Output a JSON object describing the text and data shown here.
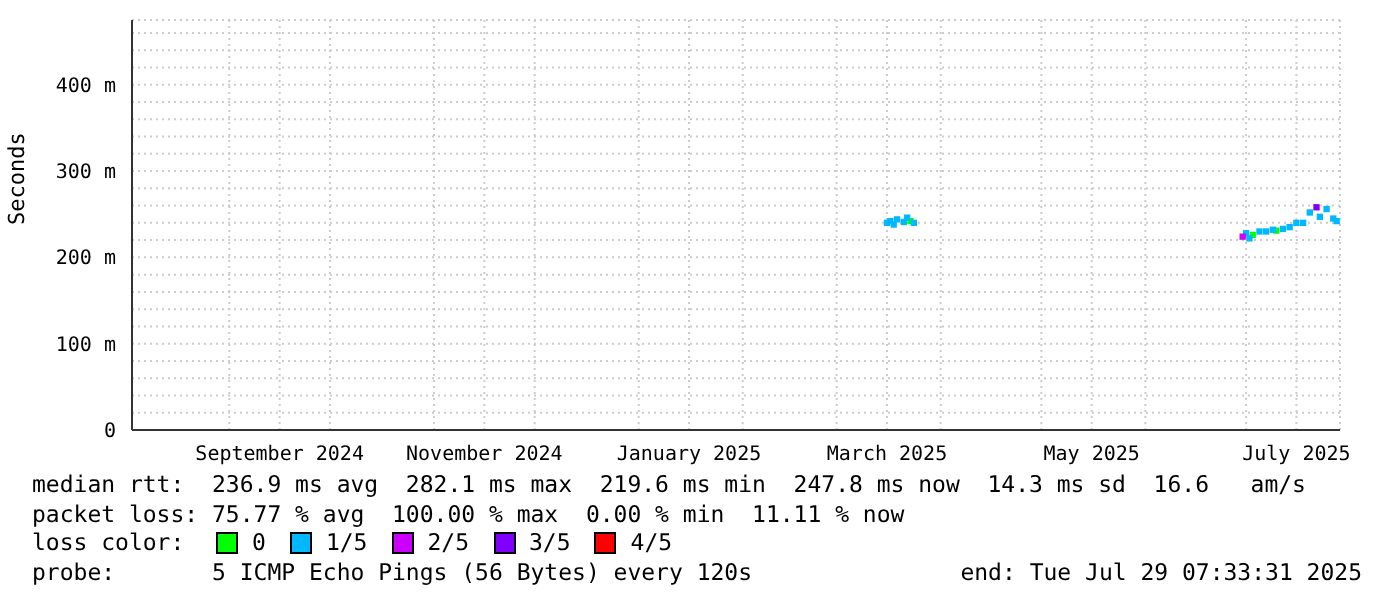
{
  "chart_data": {
    "type": "scatter",
    "ylabel": "Seconds",
    "xlim": [
      "2024-08-03",
      "2025-07-29"
    ],
    "xticks": [
      {
        "value": "2024-09-01",
        "label": null
      },
      {
        "value": "2024-09-16",
        "label": "September 2024"
      },
      {
        "value": "2024-10-01",
        "label": null
      },
      {
        "value": "2024-11-01",
        "label": null
      },
      {
        "value": "2024-11-16",
        "label": "November 2024"
      },
      {
        "value": "2024-12-01",
        "label": null
      },
      {
        "value": "2025-01-01",
        "label": null
      },
      {
        "value": "2025-01-16",
        "label": "January 2025"
      },
      {
        "value": "2025-02-01",
        "label": null
      },
      {
        "value": "2025-03-01",
        "label": null
      },
      {
        "value": "2025-03-16",
        "label": "March 2025"
      },
      {
        "value": "2025-04-01",
        "label": null
      },
      {
        "value": "2025-05-01",
        "label": null
      },
      {
        "value": "2025-05-16",
        "label": "May 2025"
      },
      {
        "value": "2025-06-01",
        "label": null
      },
      {
        "value": "2025-07-01",
        "label": null
      },
      {
        "value": "2025-07-16",
        "label": "July 2025"
      }
    ],
    "ylim": [
      0,
      475
    ],
    "yticks": [
      {
        "value": 0,
        "label": "0"
      },
      {
        "value": 20,
        "label": null
      },
      {
        "value": 40,
        "label": null
      },
      {
        "value": 60,
        "label": null
      },
      {
        "value": 80,
        "label": null
      },
      {
        "value": 100,
        "label": "100 m"
      },
      {
        "value": 120,
        "label": null
      },
      {
        "value": 140,
        "label": null
      },
      {
        "value": 160,
        "label": null
      },
      {
        "value": 180,
        "label": null
      },
      {
        "value": 200,
        "label": "200 m"
      },
      {
        "value": 220,
        "label": null
      },
      {
        "value": 240,
        "label": null
      },
      {
        "value": 260,
        "label": null
      },
      {
        "value": 280,
        "label": null
      },
      {
        "value": 300,
        "label": "300 m"
      },
      {
        "value": 320,
        "label": null
      },
      {
        "value": 340,
        "label": null
      },
      {
        "value": 360,
        "label": null
      },
      {
        "value": 380,
        "label": null
      },
      {
        "value": 400,
        "label": "400 m"
      },
      {
        "value": 420,
        "label": null
      },
      {
        "value": 440,
        "label": null
      },
      {
        "value": 460,
        "label": null
      }
    ],
    "grid": true,
    "marker": "square",
    "legend": "bottom",
    "legend_title": "loss color:",
    "series": [
      {
        "name": "0",
        "color": "#00ff00",
        "x": [
          "2025-03-23",
          "2025-07-03",
          "2025-07-10"
        ],
        "values": [
          242,
          226,
          231
        ]
      },
      {
        "name": "1/5",
        "color": "#00b8ff",
        "x": [
          "2025-03-16",
          "2025-03-17",
          "2025-03-18",
          "2025-03-19",
          "2025-03-21",
          "2025-03-22",
          "2025-03-24",
          "2025-07-01",
          "2025-07-02",
          "2025-07-05",
          "2025-07-07",
          "2025-07-09",
          "2025-07-12",
          "2025-07-14",
          "2025-07-16",
          "2025-07-18",
          "2025-07-20",
          "2025-07-23",
          "2025-07-25",
          "2025-07-27",
          "2025-07-28"
        ],
        "values": [
          240,
          242,
          238,
          244,
          241,
          246,
          240,
          228,
          222,
          230,
          230,
          232,
          233,
          235,
          240,
          240,
          252,
          247,
          256,
          245,
          242
        ]
      },
      {
        "name": "2/5",
        "color": "#cc00ff",
        "x": [
          "2025-06-30"
        ],
        "values": [
          224
        ]
      },
      {
        "name": "3/5",
        "color": "#7f00ff",
        "x": [
          "2025-07-22"
        ],
        "values": [
          258
        ]
      },
      {
        "name": "4/5",
        "color": "#ff0000"
      }
    ],
    "annotations": [
      "median rtt:  236.9 ms avg  282.1 ms max  219.6 ms min  247.8 ms now  14.3 ms sd  16.6   am/s",
      "packet loss: 75.77 % avg  100.00 % max  0.00 % min  11.11 % now",
      "probe:       5 ICMP Echo Pings (56 Bytes) every 120s",
      "end: Tue Jul 29 07:33:31 2025"
    ]
  }
}
